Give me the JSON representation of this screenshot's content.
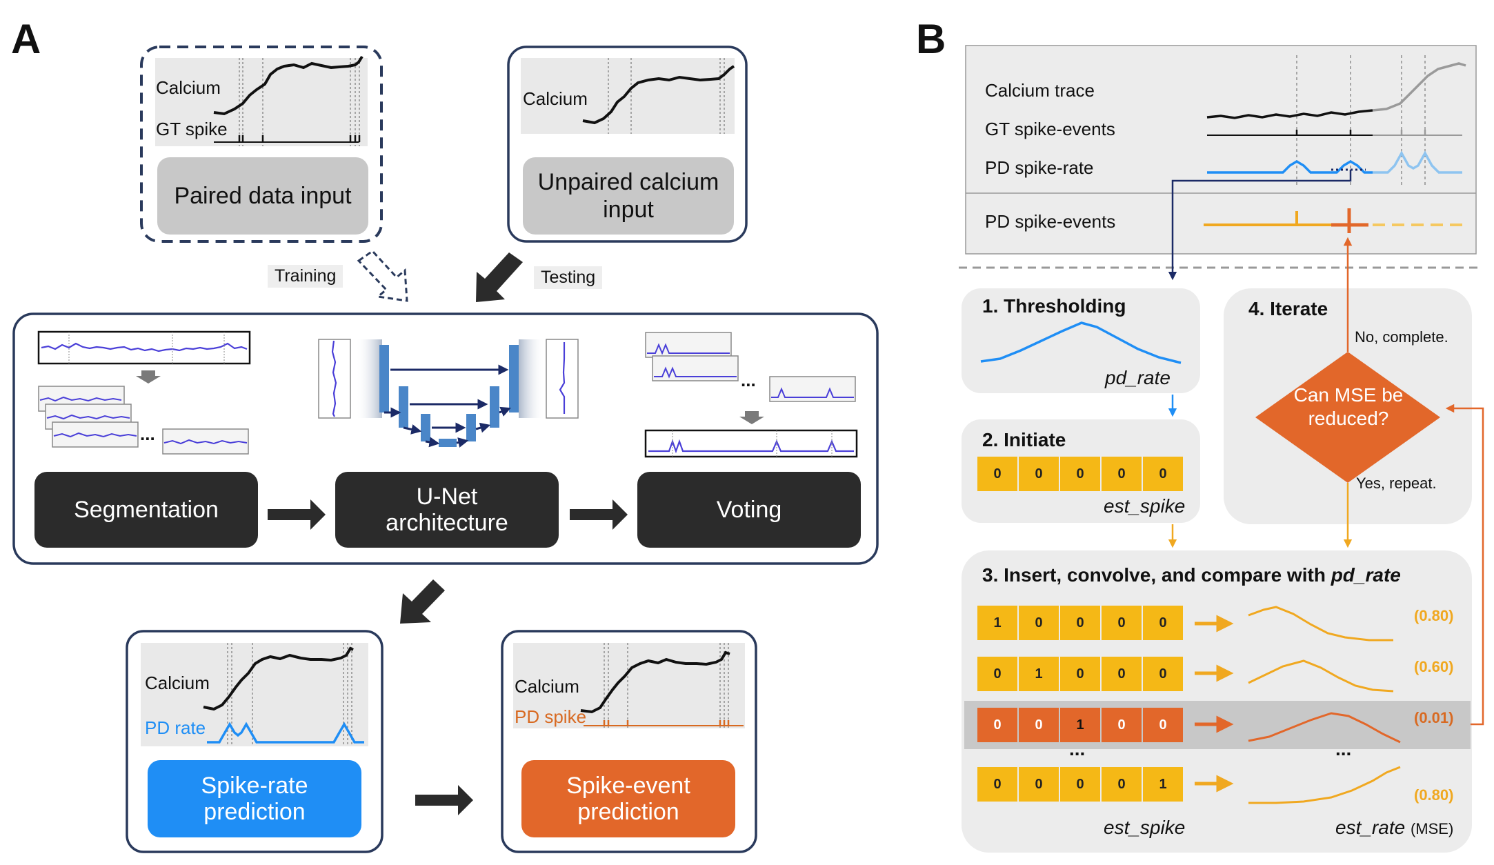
{
  "panels": {
    "a": "A",
    "b": "B"
  },
  "a": {
    "paired": {
      "calcium": "Calcium",
      "gt_spike": "GT spike",
      "box": "Paired data input"
    },
    "unpaired": {
      "calcium": "Calcium",
      "box": "Unpaired calcium input"
    },
    "training": "Training",
    "testing": "Testing",
    "segmentation": "Segmentation",
    "unet": "U-Net architecture",
    "voting": "Voting",
    "dots": "...",
    "rate_out": {
      "calcium": "Calcium",
      "pd": "PD rate",
      "box": "Spike-rate prediction"
    },
    "event_out": {
      "calcium": "Calcium",
      "pd": "PD spike",
      "box": "Spike-event prediction"
    }
  },
  "b": {
    "top": {
      "calcium_trace": "Calcium trace",
      "gt_events": "GT spike-events",
      "pd_rate": "PD spike-rate",
      "pd_events": "PD spike-events"
    },
    "step1": {
      "title": "1. Thresholding",
      "var": "pd_rate"
    },
    "step2": {
      "title": "2. Initiate",
      "cells": [
        "0",
        "0",
        "0",
        "0",
        "0"
      ],
      "var": "est_spike"
    },
    "step3": {
      "title_prefix": "3. Insert, convolve, and compare with ",
      "title_var": "pd_rate",
      "rows": [
        {
          "cells": [
            "1",
            "0",
            "0",
            "0",
            "0"
          ],
          "mse": "(0.80)",
          "selected": false
        },
        {
          "cells": [
            "0",
            "1",
            "0",
            "0",
            "0"
          ],
          "mse": "(0.60)",
          "selected": false
        },
        {
          "cells": [
            "0",
            "0",
            "1",
            "0",
            "0"
          ],
          "mse": "(0.01)",
          "selected": true
        },
        {
          "cells": [
            "0",
            "0",
            "0",
            "0",
            "1"
          ],
          "mse": "(0.80)",
          "selected": false
        }
      ],
      "dots": "...",
      "est_spike": "est_spike",
      "est_rate": "est_rate",
      "mse_label": "(MSE)"
    },
    "step4": {
      "title": "4. Iterate",
      "decision": "Can MSE be reduced?",
      "no": "No, complete.",
      "yes": "Yes, repeat."
    }
  },
  "colors": {
    "dark": "#2b2b2b",
    "blue": "#1f8ef5",
    "light_blue": "#8ec4f0",
    "navy": "#1b2a66",
    "orange": "#e2672a",
    "yellow": "#f5b816",
    "gray_box": "#c8c8c8",
    "panel_bg": "#ececec"
  }
}
